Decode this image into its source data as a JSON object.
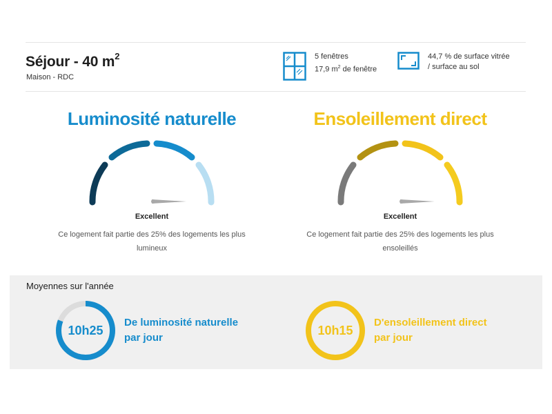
{
  "header": {
    "room_title": "Séjour - 40 m",
    "room_title_sup": "2",
    "room_subtitle": "Maison - RDC"
  },
  "stats": {
    "windows": {
      "icon": "window-icon",
      "line1": "5 fenêtres",
      "line2_prefix": "17,9 m",
      "line2_sup": "2",
      "line2_suffix": " de fenêtre"
    },
    "surface": {
      "icon": "surface-corner-icon",
      "line1": "44,7 % de surface vitrée",
      "line2": "/ surface au sol"
    }
  },
  "gauges": {
    "luminosity": {
      "title": "Luminosité naturelle",
      "rating": "Excellent",
      "description": "Ce logement fait partie des 25% des logements les plus lumineux",
      "accent_color": "#168ccc",
      "segment_colors": [
        "#0d3b57",
        "#0d6a98",
        "#168ccc",
        "#b8def2"
      ]
    },
    "sunshine": {
      "title": "Ensoleillement direct",
      "rating": "Excellent",
      "description": "Ce logement fait partie des 25% des logements les plus ensoleillés",
      "accent_color": "#f2c31a",
      "segment_colors": [
        "#7a7a7a",
        "#b39212",
        "#f2c31a",
        "#f4cb1f"
      ]
    }
  },
  "averages": {
    "title": "Moyennes sur l'année",
    "luminosity": {
      "value": "10h25",
      "line1": "De luminosité naturelle",
      "line2": "par jour",
      "color": "#168ccc",
      "track_color": "#dcdcdc"
    },
    "sunshine": {
      "value": "10h15",
      "line1": "D'ensoleillement direct",
      "line2": "par jour",
      "color": "#f2c31a",
      "track_color": "#dcdcdc"
    }
  }
}
